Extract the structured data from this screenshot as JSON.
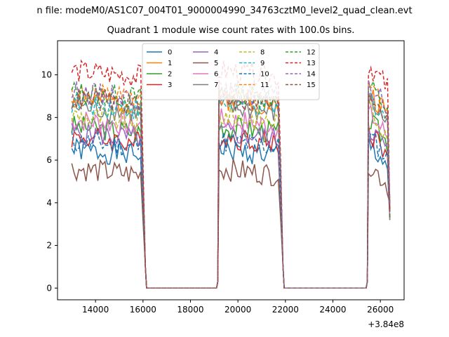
{
  "header": {
    "title": "n file: modeM0/AS1C07_004T01_9000004990_34763cztM0_level2_quad_clean.evt"
  },
  "chart_data": {
    "type": "line",
    "title": "Quadrant 1 module wise count rates with 100.0s bins.",
    "xlabel": "",
    "ylabel": "",
    "x_offset_label": "+3.84e8",
    "xlim": [
      12400,
      27000
    ],
    "ylim": [
      -0.55,
      11.6
    ],
    "x_ticks": [
      14000,
      16000,
      18000,
      20000,
      22000,
      24000,
      26000
    ],
    "y_ticks": [
      0,
      2,
      4,
      6,
      8,
      10
    ],
    "segments": [
      {
        "start": 13000,
        "end": 16000
      },
      {
        "start": 19200,
        "end": 21800
      },
      {
        "start": 25500,
        "end": 26400
      }
    ],
    "legend": {
      "placement": "top-center",
      "columns": 4
    },
    "series": [
      {
        "name": "0",
        "color": "#1f77b4",
        "dash": false,
        "level": 6.2
      },
      {
        "name": "1",
        "color": "#ff7f0e",
        "dash": false,
        "level": 8.6
      },
      {
        "name": "2",
        "color": "#2ca02c",
        "dash": false,
        "level": 7.3
      },
      {
        "name": "3",
        "color": "#d62728",
        "dash": false,
        "level": 6.8
      },
      {
        "name": "4",
        "color": "#9467bd",
        "dash": false,
        "level": 7.0
      },
      {
        "name": "5",
        "color": "#8c564b",
        "dash": false,
        "level": 5.3
      },
      {
        "name": "6",
        "color": "#e377c2",
        "dash": false,
        "level": 7.6
      },
      {
        "name": "7",
        "color": "#7f7f7f",
        "dash": false,
        "level": 8.2
      },
      {
        "name": "8",
        "color": "#bcbd22",
        "dash": true,
        "level": 7.8
      },
      {
        "name": "9",
        "color": "#17becf",
        "dash": true,
        "level": 8.4
      },
      {
        "name": "10",
        "color": "#1f77b4",
        "dash": true,
        "level": 6.6
      },
      {
        "name": "11",
        "color": "#ff7f0e",
        "dash": true,
        "level": 8.8
      },
      {
        "name": "12",
        "color": "#2ca02c",
        "dash": true,
        "level": 8.9
      },
      {
        "name": "13",
        "color": "#d62728",
        "dash": true,
        "level": 9.9
      },
      {
        "name": "14",
        "color": "#9467bd",
        "dash": true,
        "level": 8.9
      },
      {
        "name": "15",
        "color": "#8c564b",
        "dash": true,
        "level": 8.6
      }
    ]
  }
}
